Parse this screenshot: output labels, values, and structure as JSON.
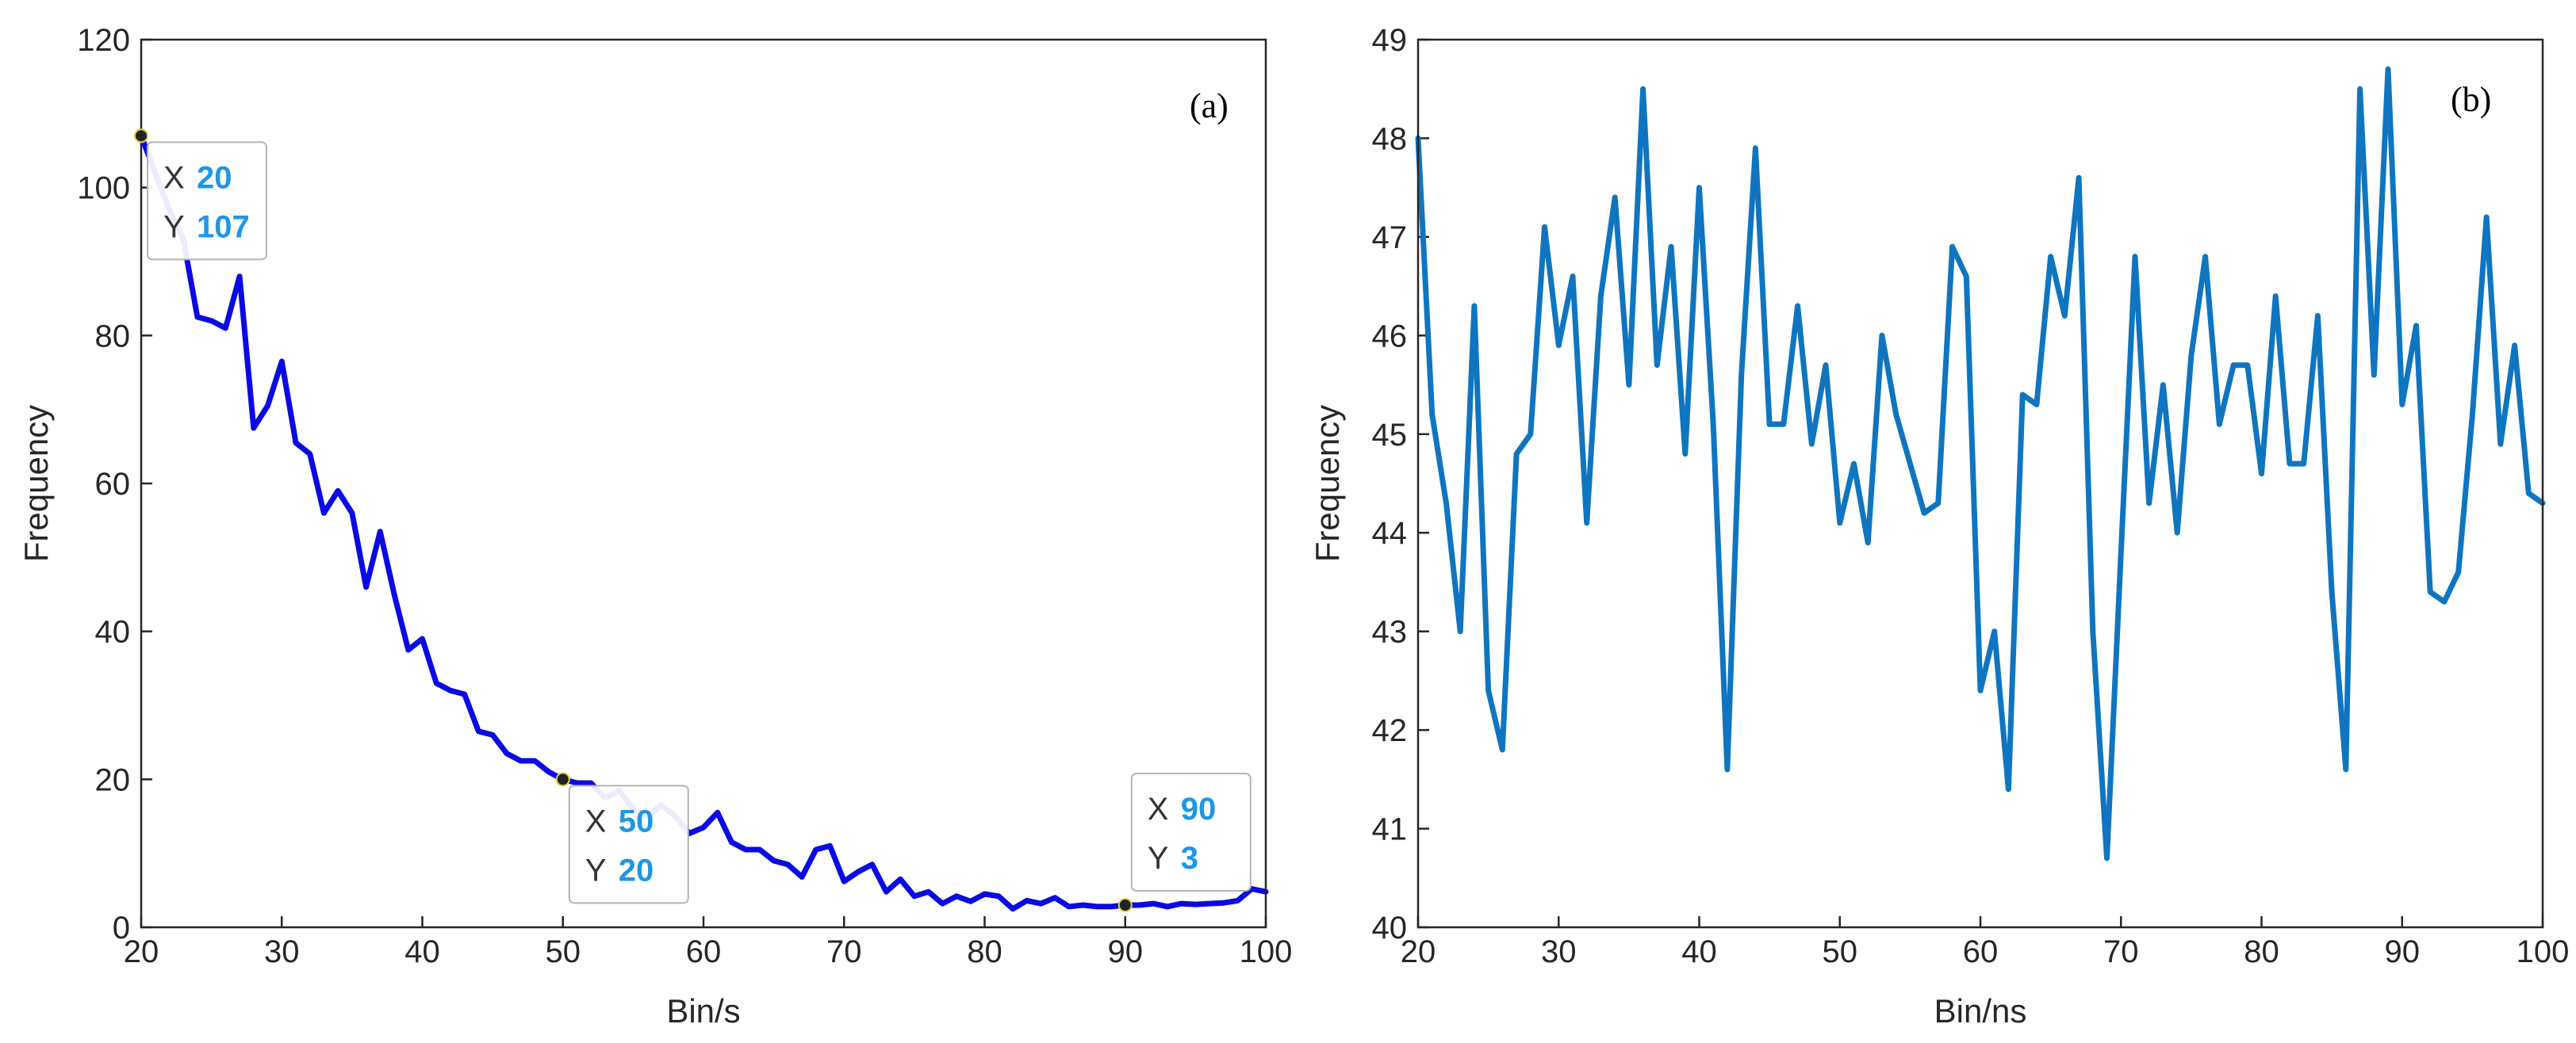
{
  "chart_data": [
    {
      "type": "line",
      "panel_label": "(a)",
      "xlabel": "Bin/s",
      "ylabel": "Frequency",
      "xlim": [
        20,
        100
      ],
      "ylim": [
        0,
        120
      ],
      "xticks": [
        20,
        30,
        40,
        50,
        60,
        70,
        80,
        90,
        100
      ],
      "yticks": [
        0,
        20,
        40,
        60,
        80,
        100,
        120
      ],
      "grid": false,
      "colors": {
        "line": "#0a0ae6",
        "datatip_value": "#1e96e6"
      },
      "series": [
        {
          "x": [
            20,
            21,
            22,
            23,
            24,
            25,
            26,
            27,
            28,
            29,
            30,
            31,
            32,
            33,
            34,
            35,
            36,
            37,
            38,
            39,
            40,
            41,
            42,
            43,
            44,
            45,
            46,
            47,
            48,
            49,
            50,
            51,
            52,
            53,
            54,
            55,
            56,
            57,
            58,
            59,
            60,
            61,
            62,
            63,
            64,
            65,
            66,
            67,
            68,
            69,
            70,
            71,
            72,
            73,
            74,
            75,
            76,
            77,
            78,
            79,
            80,
            81,
            82,
            83,
            84,
            85,
            86,
            87,
            88,
            89,
            90,
            91,
            92,
            93,
            94,
            95,
            96,
            97,
            98,
            99,
            100
          ],
          "values": [
            107,
            102,
            97,
            93,
            82.5,
            82,
            81,
            88,
            67.5,
            70.5,
            76.5,
            65.5,
            64,
            56,
            59,
            56,
            46,
            53.5,
            45,
            37.5,
            39,
            33,
            32,
            31.5,
            26.5,
            26,
            23.5,
            22.5,
            22.5,
            21,
            20,
            19.5,
            19.5,
            17.5,
            18.5,
            16,
            15,
            16.5,
            15,
            12.7,
            13.5,
            15.5,
            11.5,
            10.5,
            10.5,
            9,
            8.5,
            6.8,
            10.5,
            11,
            6.2,
            7.5,
            8.5,
            4.8,
            6.5,
            4.2,
            4.8,
            3.2,
            4.2,
            3.5,
            4.5,
            4.2,
            2.5,
            3.6,
            3.2,
            4,
            2.8,
            3,
            2.8,
            2.8,
            3,
            3,
            3.2,
            2.8,
            3.2,
            3.1,
            3.2,
            3.3,
            3.6,
            5.2,
            4.8
          ]
        }
      ],
      "datatips": [
        {
          "x_label": "X",
          "x_value": "20",
          "y_label": "Y",
          "y_value": "107",
          "x": 20,
          "y": 107
        },
        {
          "x_label": "X",
          "x_value": "50",
          "y_label": "Y",
          "y_value": "20",
          "x": 50,
          "y": 20
        },
        {
          "x_label": "X",
          "x_value": "90",
          "y_label": "Y",
          "y_value": "3",
          "x": 90,
          "y": 3
        }
      ]
    },
    {
      "type": "line",
      "panel_label": "(b)",
      "xlabel": "Bin/ns",
      "ylabel": "Frequency",
      "xlim": [
        20,
        100
      ],
      "ylim": [
        40,
        49
      ],
      "xticks": [
        20,
        30,
        40,
        50,
        60,
        70,
        80,
        90,
        100
      ],
      "yticks": [
        40,
        41,
        42,
        43,
        44,
        45,
        46,
        47,
        48,
        49
      ],
      "grid": false,
      "colors": {
        "line": "#0f75c0"
      },
      "series": [
        {
          "x": [
            20,
            21,
            22,
            23,
            24,
            25,
            26,
            27,
            28,
            29,
            30,
            31,
            32,
            33,
            34,
            35,
            36,
            37,
            38,
            39,
            40,
            41,
            42,
            43,
            44,
            45,
            46,
            47,
            48,
            49,
            50,
            51,
            52,
            53,
            54,
            55,
            56,
            57,
            58,
            59,
            60,
            61,
            62,
            63,
            64,
            65,
            66,
            67,
            68,
            69,
            70,
            71,
            72,
            73,
            74,
            75,
            76,
            77,
            78,
            79,
            80,
            81,
            82,
            83,
            84,
            85,
            86,
            87,
            88,
            89,
            90,
            91,
            92,
            93,
            94,
            95,
            96,
            97,
            98,
            99,
            100
          ],
          "values": [
            48,
            45.2,
            44.3,
            43,
            46.3,
            42.4,
            41.8,
            44.8,
            45,
            47.1,
            45.9,
            46.6,
            44.1,
            46.4,
            47.4,
            45.5,
            48.5,
            45.7,
            46.9,
            44.8,
            47.5,
            45.1,
            41.6,
            45.6,
            47.9,
            45.1,
            45.1,
            46.3,
            44.9,
            45.7,
            44.1,
            44.7,
            43.9,
            46,
            45.2,
            44.7,
            44.2,
            44.3,
            46.9,
            46.6,
            42.4,
            43,
            41.4,
            45.4,
            45.3,
            46.8,
            46.2,
            47.6,
            43,
            40.7,
            43.8,
            46.8,
            44.3,
            45.5,
            44,
            45.8,
            46.8,
            45.1,
            45.7,
            45.7,
            44.6,
            46.4,
            44.7,
            44.7,
            46.2,
            43.4,
            41.6,
            48.5,
            45.6,
            48.7,
            45.3,
            46.1,
            43.4,
            43.3,
            43.6,
            45.2,
            47.2,
            44.9,
            45.9,
            44.4,
            44.3
          ]
        }
      ]
    }
  ]
}
